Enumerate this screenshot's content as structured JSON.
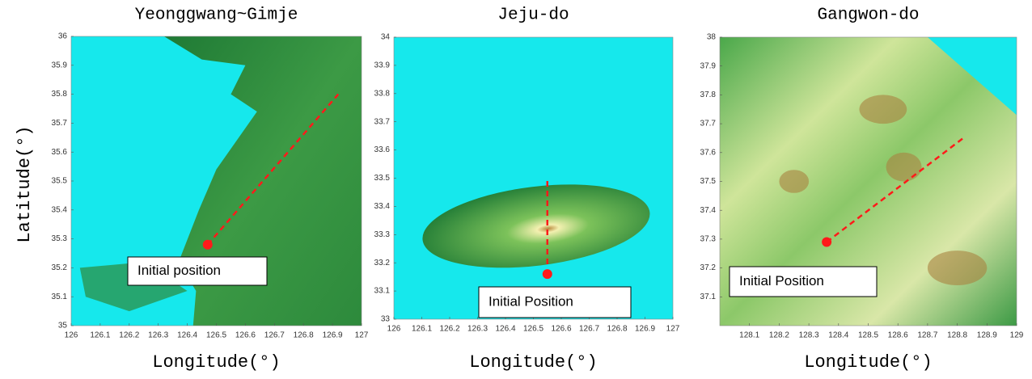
{
  "chart_data": [
    {
      "type": "map",
      "title": "Yeonggwang~Gimje",
      "x_label": "Longitude(°)",
      "y_label": "Latitude(°)",
      "xlim": [
        126,
        127
      ],
      "ylim": [
        35,
        36
      ],
      "xticks": [
        126,
        126.1,
        126.2,
        126.3,
        126.4,
        126.5,
        126.6,
        126.7,
        126.8,
        126.9,
        127
      ],
      "yticks": [
        35,
        35.1,
        35.2,
        35.3,
        35.4,
        35.5,
        35.6,
        35.7,
        35.8,
        35.9,
        36
      ],
      "route": {
        "x": [
          126.47,
          126.92
        ],
        "y": [
          35.28,
          35.8
        ]
      },
      "initial_point": {
        "x": 126.47,
        "y": 35.28
      },
      "annotation": "Initial position"
    },
    {
      "type": "map",
      "title": "Jeju-do",
      "x_label": "Longitude(°)",
      "xlim": [
        126,
        127
      ],
      "ylim": [
        33,
        34
      ],
      "xticks": [
        126,
        126.1,
        126.2,
        126.3,
        126.4,
        126.5,
        126.6,
        126.7,
        126.8,
        126.9,
        127
      ],
      "yticks": [
        33,
        33.1,
        33.2,
        33.3,
        33.4,
        33.5,
        33.6,
        33.7,
        33.8,
        33.9,
        34
      ],
      "route": {
        "x": [
          126.55,
          126.55
        ],
        "y": [
          33.49,
          33.19
        ]
      },
      "initial_point": {
        "x": 126.55,
        "y": 33.16
      },
      "annotation": "Initial Position"
    },
    {
      "type": "map",
      "title": "Gangwon-do",
      "x_label": "Longitude(°)",
      "xlim": [
        128,
        129
      ],
      "ylim": [
        37,
        38
      ],
      "xticks": [
        128.1,
        128.2,
        128.3,
        128.4,
        128.5,
        128.6,
        128.7,
        128.8,
        128.9,
        129
      ],
      "yticks": [
        37.1,
        37.2,
        37.3,
        37.4,
        37.5,
        37.6,
        37.7,
        37.8,
        37.9,
        38
      ],
      "route": {
        "x": [
          128.36,
          128.82
        ],
        "y": [
          37.29,
          37.65
        ]
      },
      "initial_point": {
        "x": 128.36,
        "y": 37.29
      },
      "annotation": "Initial Position"
    }
  ]
}
